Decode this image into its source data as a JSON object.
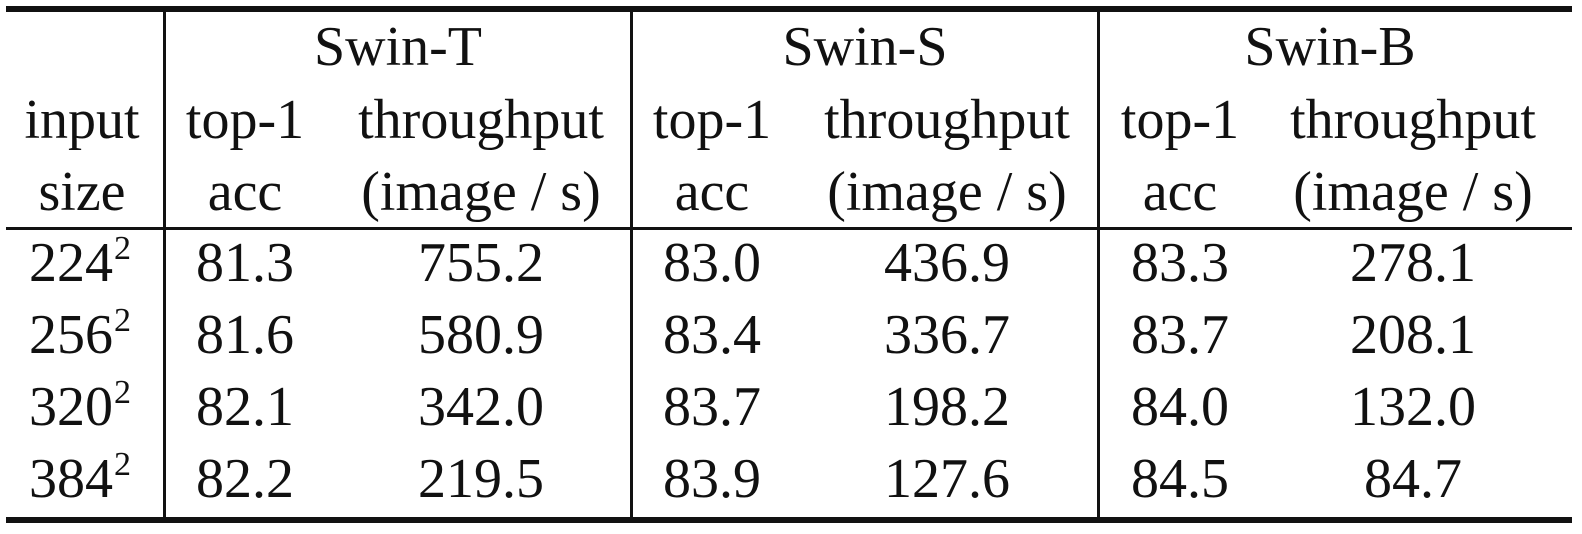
{
  "table": {
    "groups": [
      {
        "name": "Swin-T"
      },
      {
        "name": "Swin-S"
      },
      {
        "name": "Swin-B"
      }
    ],
    "row_header_lines": [
      "input",
      "size"
    ],
    "subheaders": {
      "acc_lines": [
        "top-1",
        "acc"
      ],
      "throughput_lines": [
        "throughput",
        "(image / s)"
      ]
    },
    "rows": [
      {
        "size_base": "224",
        "size_exp": "2",
        "values": [
          "81.3",
          "755.2",
          "83.0",
          "436.9",
          "83.3",
          "278.1"
        ]
      },
      {
        "size_base": "256",
        "size_exp": "2",
        "values": [
          "81.6",
          "580.9",
          "83.4",
          "336.7",
          "83.7",
          "208.1"
        ]
      },
      {
        "size_base": "320",
        "size_exp": "2",
        "values": [
          "82.1",
          "342.0",
          "83.7",
          "198.2",
          "84.0",
          "132.0"
        ]
      },
      {
        "size_base": "384",
        "size_exp": "2",
        "values": [
          "82.2",
          "219.5",
          "83.9",
          "127.6",
          "84.5",
          "84.7"
        ]
      }
    ]
  }
}
